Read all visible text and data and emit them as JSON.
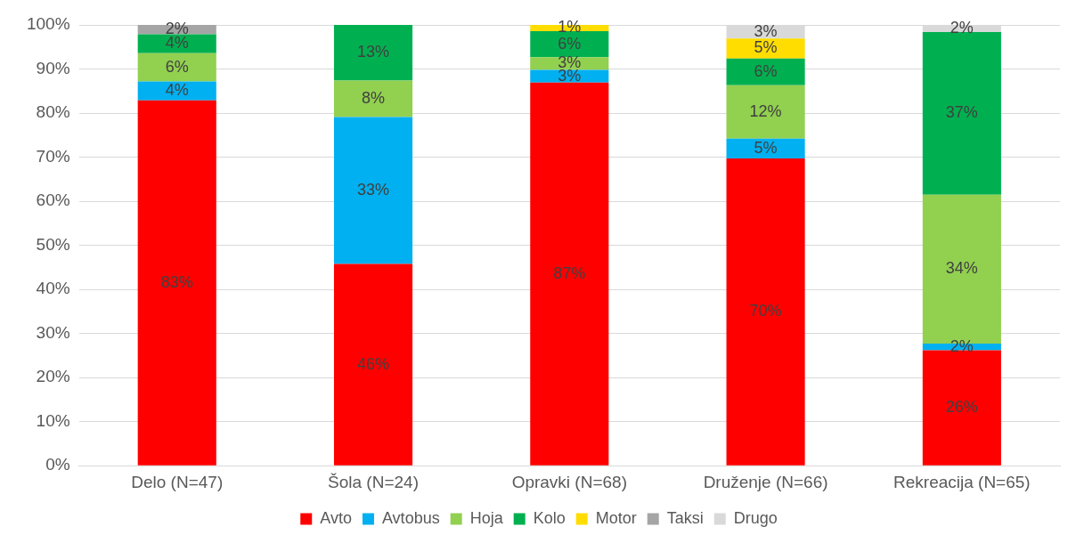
{
  "chart_data": {
    "type": "bar",
    "stacked": true,
    "categories": [
      "Delo (N=47)",
      "Šola (N=24)",
      "Opravki (N=68)",
      "Druženje (N=66)",
      "Rekreacija (N=65)"
    ],
    "series": [
      {
        "name": "Avto",
        "color": "#ff0000",
        "values": [
          82.9,
          45.8,
          86.9,
          69.7,
          26.2
        ],
        "value_labels": [
          "83%",
          "46%",
          "87%",
          "70%",
          "26%"
        ]
      },
      {
        "name": "Avtobus",
        "color": "#00b0f0",
        "values": [
          4.3,
          33.3,
          2.9,
          4.5,
          1.5
        ],
        "value_labels": [
          "4%",
          "33%",
          "3%",
          "5%",
          "2%"
        ]
      },
      {
        "name": "Hoja",
        "color": "#92d050",
        "values": [
          6.4,
          8.3,
          2.9,
          12.1,
          33.8
        ],
        "value_labels": [
          "6%",
          "8%",
          "3%",
          "12%",
          "34%"
        ]
      },
      {
        "name": "Kolo",
        "color": "#00b050",
        "values": [
          4.3,
          12.6,
          5.9,
          6.1,
          36.9
        ],
        "value_labels": [
          "4%",
          "13%",
          "6%",
          "6%",
          "37%"
        ]
      },
      {
        "name": "Motor",
        "color": "#ffdd00",
        "values": [
          null,
          null,
          1.4,
          4.5,
          null
        ],
        "value_labels": [
          null,
          null,
          "1%",
          "5%",
          null
        ]
      },
      {
        "name": "Taksi",
        "color": "#a5a5a5",
        "values": [
          2.1,
          null,
          null,
          null,
          null
        ],
        "value_labels": [
          "2%",
          null,
          null,
          null,
          null
        ]
      },
      {
        "name": "Drugo",
        "color": "#d9d9d9",
        "values": [
          null,
          null,
          null,
          3.1,
          1.6
        ],
        "value_labels": [
          null,
          null,
          null,
          "3%",
          "2%"
        ]
      }
    ],
    "ylim": [
      0,
      100
    ],
    "yticks": [
      {
        "value": 0,
        "label": "0%"
      },
      {
        "value": 10,
        "label": "10%"
      },
      {
        "value": 20,
        "label": "20%"
      },
      {
        "value": 30,
        "label": "30%"
      },
      {
        "value": 40,
        "label": "40%"
      },
      {
        "value": 50,
        "label": "50%"
      },
      {
        "value": 60,
        "label": "60%"
      },
      {
        "value": 70,
        "label": "70%"
      },
      {
        "value": 80,
        "label": "80%"
      },
      {
        "value": 90,
        "label": "90%"
      },
      {
        "value": 100,
        "label": "100%"
      }
    ],
    "grid": "y",
    "legend": "bottom"
  }
}
